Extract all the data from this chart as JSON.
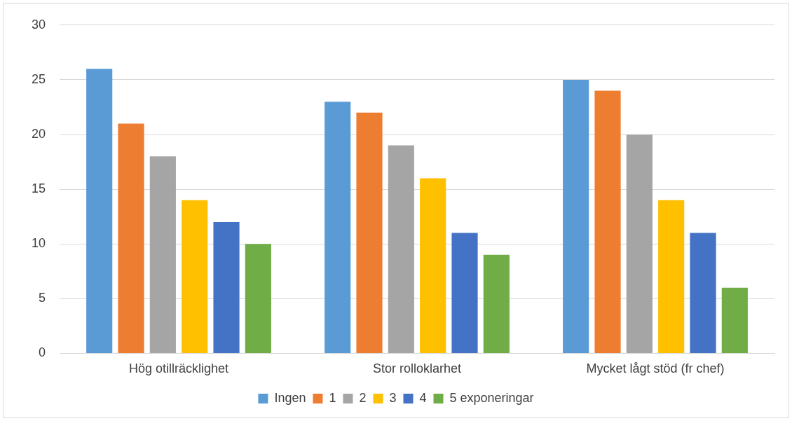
{
  "chart_data": {
    "type": "bar",
    "categories": [
      "Hög otillräcklighet",
      "Stor rolloklarhet",
      "Mycket lågt stöd (fr chef)"
    ],
    "series": [
      {
        "name": "Ingen",
        "color": "#5b9bd5",
        "values": [
          26,
          23,
          25
        ]
      },
      {
        "name": "1",
        "color": "#ed7d31",
        "values": [
          21,
          22,
          24
        ]
      },
      {
        "name": "2",
        "color": "#a5a5a5",
        "values": [
          18,
          19,
          20
        ]
      },
      {
        "name": "3",
        "color": "#ffc000",
        "values": [
          14,
          16,
          14
        ]
      },
      {
        "name": "4",
        "color": "#4472c4",
        "values": [
          12,
          11,
          11
        ]
      },
      {
        "name": "5 exponeringar",
        "color": "#70ad47",
        "values": [
          10,
          9,
          6
        ]
      }
    ],
    "ylim": [
      0,
      30
    ],
    "yticks": [
      0,
      5,
      10,
      15,
      20,
      25,
      30
    ],
    "grid": "y",
    "legend": "bottom"
  }
}
